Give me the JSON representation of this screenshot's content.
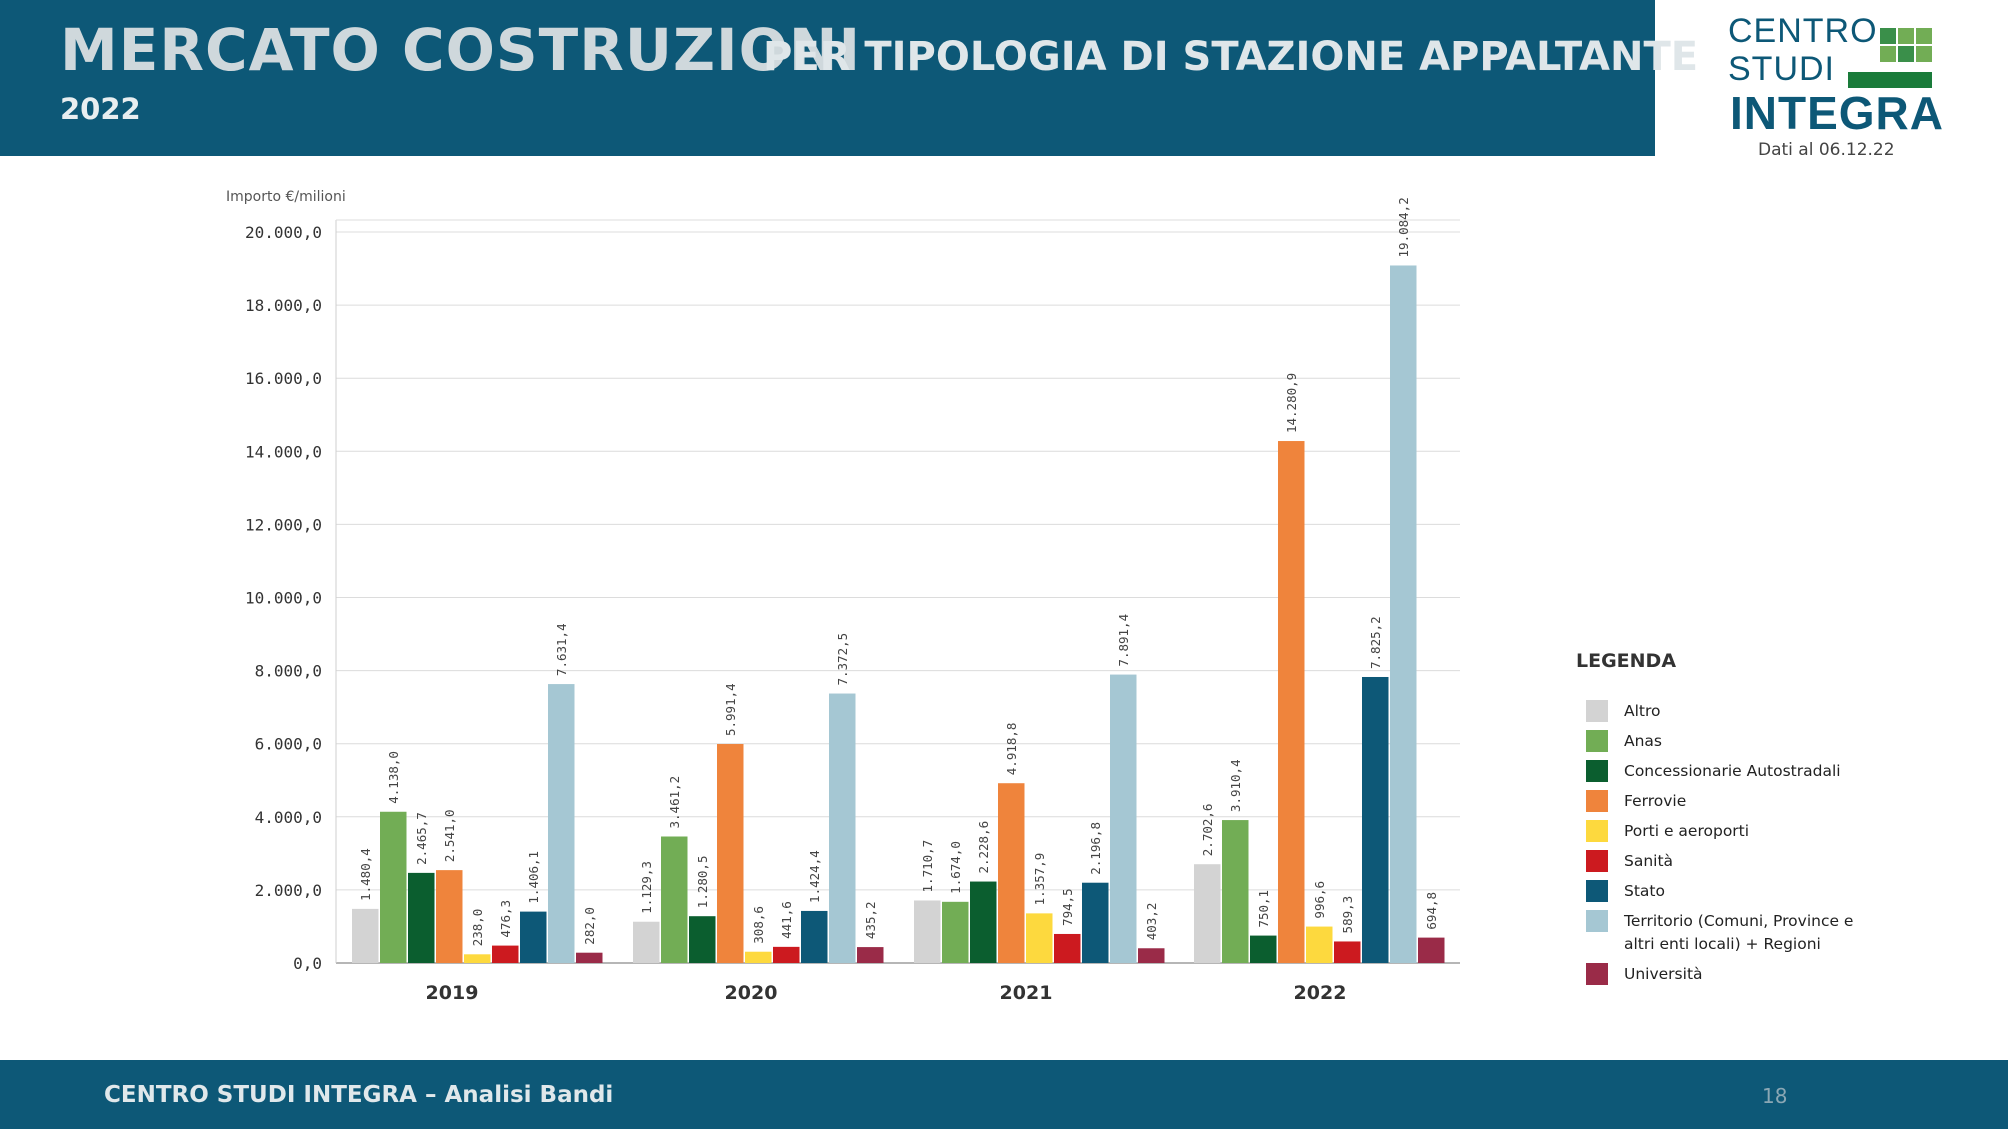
{
  "header": {
    "title_main": "MERCATO COSTRUZIONI",
    "title_sub": "PER TIPOLOGIA DI STAZIONE APPALTANTE",
    "year": "2022"
  },
  "logo": {
    "line1": "CENTRO",
    "line2": "STUDI",
    "line3": "INTEGRA",
    "date": "Dati al 06.12.22"
  },
  "footer": {
    "text": "CENTRO STUDI INTEGRA – Analisi Bandi",
    "page": "18"
  },
  "legend_title": "LEGENDA",
  "colors": {
    "Altro": "#d3d3d3",
    "Anas": "#72ad55",
    "Concessionarie Autostradali": "#0b5e2f",
    "Ferrovie": "#ef843c",
    "Porti e aeroporti": "#fdd93e",
    "Sanità": "#cc1a1f",
    "Stato": "#0d5877",
    "Territorio": "#a5c7d3",
    "Università": "#9a2b48"
  },
  "chart_data": {
    "type": "bar",
    "title": "",
    "ylabel": "Importo €/milioni",
    "xlabel": "",
    "ylim": [
      0,
      20000
    ],
    "yticks": [
      "0,0",
      "2.000,0",
      "4.000,0",
      "6.000,0",
      "8.000,0",
      "10.000,0",
      "12.000,0",
      "14.000,0",
      "16.000,0",
      "18.000,0",
      "20.000,0"
    ],
    "categories": [
      "2019",
      "2020",
      "2021",
      "2022"
    ],
    "series": [
      {
        "name": "Altro",
        "values": [
          1480.4,
          1129.3,
          1710.7,
          2702.6
        ],
        "labels": [
          "1.480,4",
          "1.129,3",
          "1.710,7",
          "2.702,6"
        ]
      },
      {
        "name": "Anas",
        "values": [
          4138.0,
          3461.2,
          1674.0,
          3910.4
        ],
        "labels": [
          "4.138,0",
          "3.461,2",
          "1.674,0",
          "3.910,4"
        ]
      },
      {
        "name": "Concessionarie Autostradali",
        "values": [
          2465.7,
          1280.5,
          2228.6,
          750.1
        ],
        "labels": [
          "2.465,7",
          "1.280,5",
          "2.228,6",
          "750,1"
        ]
      },
      {
        "name": "Ferrovie",
        "values": [
          2541.0,
          5991.4,
          4918.8,
          14280.9
        ],
        "labels": [
          "2.541,0",
          "5.991,4",
          "4.918,8",
          "14.280,9"
        ]
      },
      {
        "name": "Porti e aeroporti",
        "values": [
          238.0,
          308.6,
          1357.9,
          996.6
        ],
        "labels": [
          "238,0",
          "308,6",
          "1.357,9",
          "996,6"
        ]
      },
      {
        "name": "Sanità",
        "values": [
          476.3,
          441.6,
          794.5,
          589.3
        ],
        "labels": [
          "476,3",
          "441,6",
          "794,5",
          "589,3"
        ]
      },
      {
        "name": "Stato",
        "values": [
          1406.1,
          1424.4,
          2196.8,
          7825.2
        ],
        "labels": [
          "1.406,1",
          "1.424,4",
          "2.196,8",
          "7.825,2"
        ]
      },
      {
        "name": "Territorio (Comuni, Province e altri enti locali) + Regioni",
        "values": [
          7631.4,
          7372.5,
          7891.4,
          19084.2
        ],
        "labels": [
          "7.631,4",
          "7.372,5",
          "7.891,4",
          "19.084,2"
        ]
      },
      {
        "name": "Università",
        "values": [
          282.0,
          435.2,
          403.2,
          694.8
        ],
        "labels": [
          "282,0",
          "435,2",
          "403,2",
          "694,8"
        ]
      }
    ],
    "legend": [
      "Altro",
      "Anas",
      "Concessionarie Autostradali",
      "Ferrovie",
      "Porti e aeroporti",
      "Sanità",
      "Stato",
      "Territorio (Comuni, Province e altri enti locali) + Regioni",
      "Università"
    ],
    "legend_position": "right",
    "grid": true
  }
}
